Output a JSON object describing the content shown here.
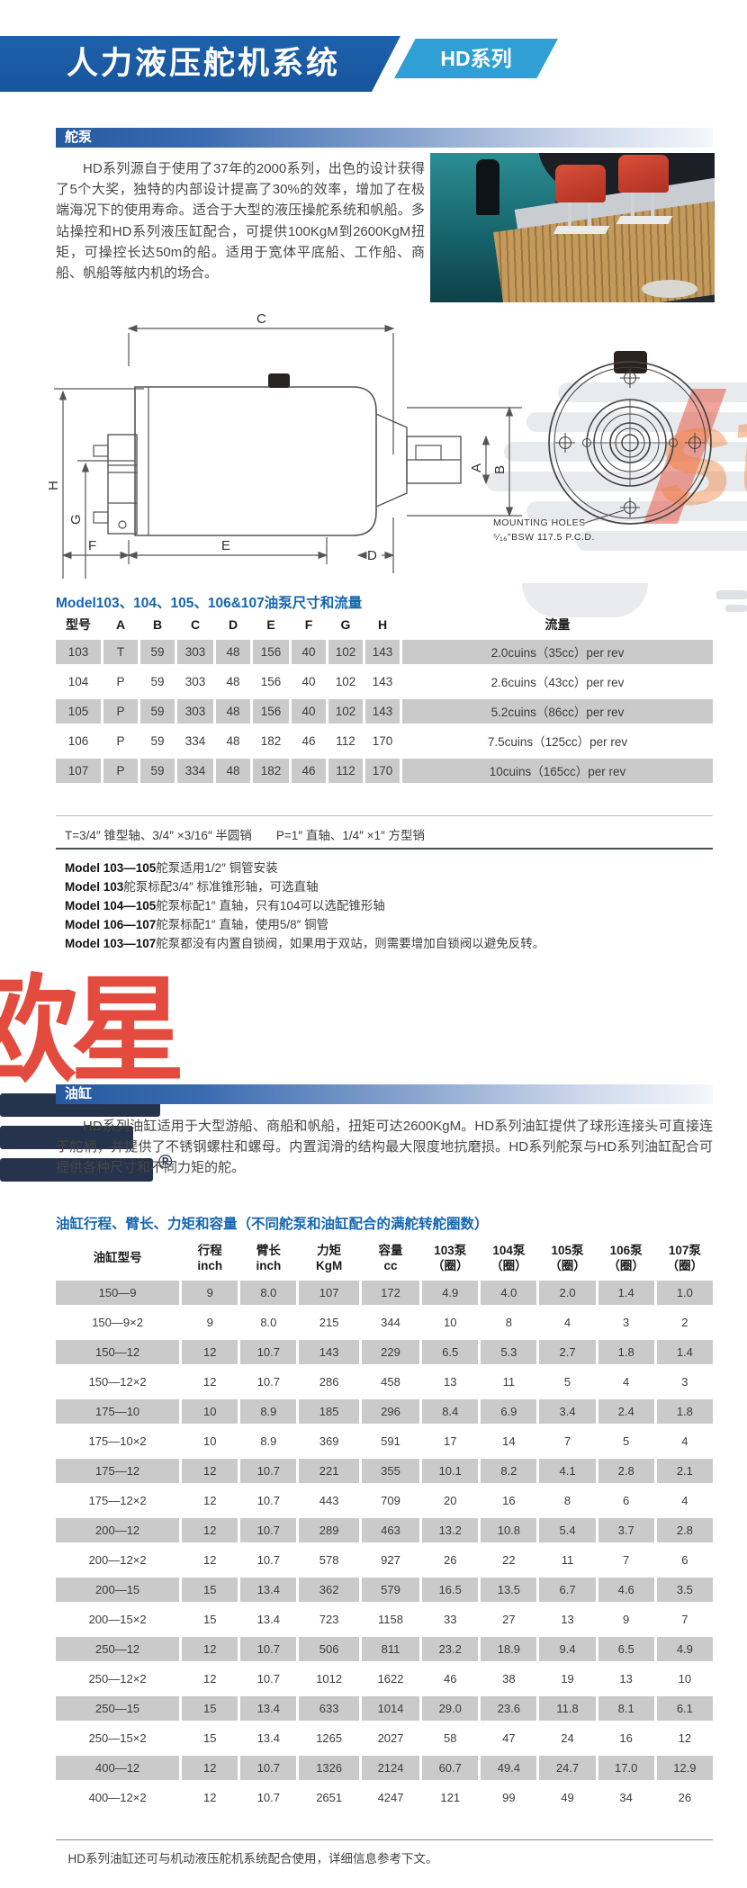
{
  "page": {
    "banner_title": "人力液压舵机系统",
    "badge": "HD系列"
  },
  "pump_section": {
    "header": "舵泵",
    "paragraph": "HD系列源自于使用了37年的2000系列，出色的设计获得了5个大奖，独特的内部设计提高了30%的效率，增加了在极端海况下的使用寿命。适合于大型的液压操舵系统和帆船。多站操控和HD系列液压缸配合，可提供100KgM到2600KgM扭矩，可操控长达50m的船。适用于宽体平底船、工作船、商船、帆船等舷内机的场合。",
    "drawing": {
      "labels": {
        "c": "C",
        "a": "A",
        "b": "B",
        "h": "H",
        "g": "G",
        "f": "F",
        "e": "E",
        "d": "D"
      },
      "mounting_line1": "MOUNTING  HOLES",
      "mounting_line2": "⁵⁄₁₆\"BSW  117.5  P.C.D."
    },
    "table_title": "Model103、104、105、106&107油泵尺寸和流量",
    "table": {
      "headers": [
        "型号",
        "A",
        "B",
        "C",
        "D",
        "E",
        "F",
        "G",
        "H",
        "流量"
      ],
      "rows": [
        [
          "103",
          "T",
          "59",
          "303",
          "48",
          "156",
          "40",
          "102",
          "143",
          "2.0cuins（35cc）per rev"
        ],
        [
          "104",
          "P",
          "59",
          "303",
          "48",
          "156",
          "40",
          "102",
          "143",
          "2.6cuins（43cc）per rev"
        ],
        [
          "105",
          "P",
          "59",
          "303",
          "48",
          "156",
          "40",
          "102",
          "143",
          "5.2cuins（86cc）per rev"
        ],
        [
          "106",
          "P",
          "59",
          "334",
          "48",
          "182",
          "46",
          "112",
          "170",
          "7.5cuins（125cc）per rev"
        ],
        [
          "107",
          "P",
          "59",
          "334",
          "48",
          "182",
          "46",
          "112",
          "170",
          "10cuins（165cc）per rev"
        ]
      ]
    },
    "shaft_note": "T=3/4″ 锥型轴、3/4″ ×3/16″ 半圆销　　P=1″ 直轴、1/4″ ×1″ 方型销",
    "notes": [
      {
        "bold": "Model 103—105",
        "rest": "舵泵适用1/2″ 铜管安装"
      },
      {
        "bold": "Model 103",
        "rest": "舵泵标配3/4″ 标准锥形轴，可选直轴"
      },
      {
        "bold": "Model 104—105",
        "rest": "舵泵标配1″ 直轴，只有104可以选配锥形轴"
      },
      {
        "bold": "Model 106—107",
        "rest": "舵泵标配1″ 直轴，使用5/8″ 铜管"
      },
      {
        "bold": "Model 103—107",
        "rest": "舵泵都没有内置自锁阀，如果用于双站，则需要增加自锁阀以避免反转。"
      }
    ]
  },
  "cylinder_section": {
    "header": "油缸",
    "paragraph": "HD系列油缸适用于大型游船、商船和帆船，扭矩可达2600KgM。HD系列油缸提供了球形连接头可直接连于舵柄，并提供了不锈钢螺柱和螺母。内置润滑的结构最大限度地抗磨损。HD系列舵泵与HD系列油缸配合可提供各种尺寸和不同力矩的舵。",
    "table_title": "油缸行程、臂长、力矩和容量（不同舵泵和油缸配合的满舵转舵圈数）",
    "table": {
      "headers": [
        [
          "油缸型号"
        ],
        [
          "行程",
          "inch"
        ],
        [
          "臂长",
          "inch"
        ],
        [
          "力矩",
          "KgM"
        ],
        [
          "容量",
          "cc"
        ],
        [
          "103泵",
          "（圈）"
        ],
        [
          "104泵",
          "（圈）"
        ],
        [
          "105泵",
          "（圈）"
        ],
        [
          "106泵",
          "（圈）"
        ],
        [
          "107泵",
          "（圈）"
        ]
      ],
      "rows": [
        [
          "150—9",
          "9",
          "8.0",
          "107",
          "172",
          "4.9",
          "4.0",
          "2.0",
          "1.4",
          "1.0"
        ],
        [
          "150—9×2",
          "9",
          "8.0",
          "215",
          "344",
          "10",
          "8",
          "4",
          "3",
          "2"
        ],
        [
          "150—12",
          "12",
          "10.7",
          "143",
          "229",
          "6.5",
          "5.3",
          "2.7",
          "1.8",
          "1.4"
        ],
        [
          "150—12×2",
          "12",
          "10.7",
          "286",
          "458",
          "13",
          "11",
          "5",
          "4",
          "3"
        ],
        [
          "175—10",
          "10",
          "8.9",
          "185",
          "296",
          "8.4",
          "6.9",
          "3.4",
          "2.4",
          "1.8"
        ],
        [
          "175—10×2",
          "10",
          "8.9",
          "369",
          "591",
          "17",
          "14",
          "7",
          "5",
          "4"
        ],
        [
          "175—12",
          "12",
          "10.7",
          "221",
          "355",
          "10.1",
          "8.2",
          "4.1",
          "2.8",
          "2.1"
        ],
        [
          "175—12×2",
          "12",
          "10.7",
          "443",
          "709",
          "20",
          "16",
          "8",
          "6",
          "4"
        ],
        [
          "200—12",
          "12",
          "10.7",
          "289",
          "463",
          "13.2",
          "10.8",
          "5.4",
          "3.7",
          "2.8"
        ],
        [
          "200—12×2",
          "12",
          "10.7",
          "578",
          "927",
          "26",
          "22",
          "11",
          "7",
          "6"
        ],
        [
          "200—15",
          "15",
          "13.4",
          "362",
          "579",
          "16.5",
          "13.5",
          "6.7",
          "4.6",
          "3.5"
        ],
        [
          "200—15×2",
          "15",
          "13.4",
          "723",
          "1158",
          "33",
          "27",
          "13",
          "9",
          "7"
        ],
        [
          "250—12",
          "12",
          "10.7",
          "506",
          "811",
          "23.2",
          "18.9",
          "9.4",
          "6.5",
          "4.9"
        ],
        [
          "250—12×2",
          "12",
          "10.7",
          "1012",
          "1622",
          "46",
          "38",
          "19",
          "13",
          "10"
        ],
        [
          "250—15",
          "15",
          "13.4",
          "633",
          "1014",
          "29.0",
          "23.6",
          "11.8",
          "8.1",
          "6.1"
        ],
        [
          "250—15×2",
          "15",
          "13.4",
          "1265",
          "2027",
          "58",
          "47",
          "24",
          "16",
          "12"
        ],
        [
          "400—12",
          "12",
          "10.7",
          "1326",
          "2124",
          "60.7",
          "49.4",
          "24.7",
          "17.0",
          "12.9"
        ],
        [
          "400—12×2",
          "12",
          "10.7",
          "2651",
          "4247",
          "121",
          "99",
          "49",
          "34",
          "26"
        ]
      ]
    },
    "footer_note": "HD系列油缸还可与机动液压舵机系统配合使用，详细信息参考下文。"
  },
  "watermarks": {
    "star": "star",
    "brand": "欧星",
    "registered": "®"
  },
  "colors": {
    "banner_blue": "#1b5ca6",
    "badge_blue": "#2f9fd4",
    "title_blue": "#1565b0",
    "row_gray": "#cacaca",
    "watermark_red": "#e03325",
    "watermark_orange": "#ef8440"
  }
}
